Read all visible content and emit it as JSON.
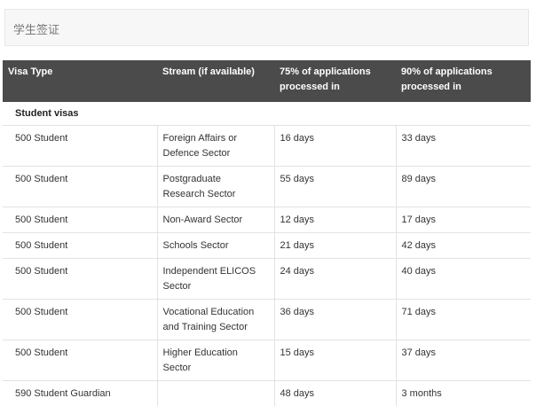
{
  "header": {
    "title": "学生签证"
  },
  "table": {
    "columns": [
      "Visa Type",
      "Stream (if available)",
      "75% of applications processed in",
      "90% of applications processed in"
    ],
    "section": "Student visas",
    "rows": [
      [
        "500 Student",
        "Foreign Affairs or Defence Sector",
        "16 days",
        "33 days"
      ],
      [
        "500 Student",
        "Postgraduate Research Sector",
        "55 days",
        "89 days"
      ],
      [
        "500 Student",
        "Non-Award Sector",
        "12 days",
        "17 days"
      ],
      [
        "500 Student",
        "Schools Sector",
        "21 days",
        "42 days"
      ],
      [
        "500 Student",
        "Independent ELICOS Sector",
        "24 days",
        "40 days"
      ],
      [
        "500 Student",
        "Vocational Education and Training Sector",
        "36 days",
        "71 days"
      ],
      [
        "500 Student",
        "Higher Education Sector",
        "15 days",
        "37 days"
      ],
      [
        "590 Student Guardian",
        null,
        "48 days",
        "3 months"
      ]
    ]
  }
}
